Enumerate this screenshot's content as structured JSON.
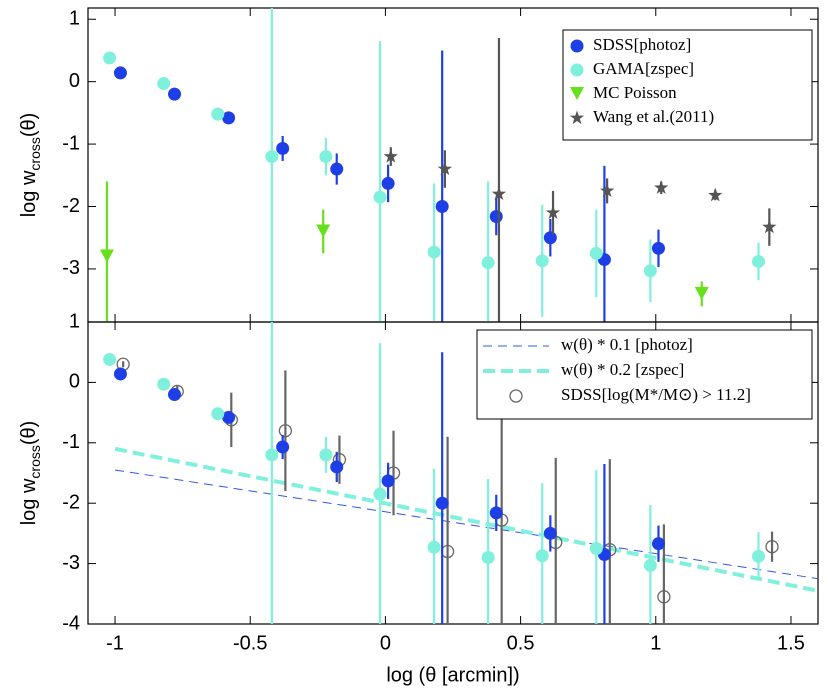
{
  "chart_data": [
    {
      "type": "scatter",
      "ylabel": [
        "log w",
        "cross",
        "(θ)"
      ],
      "xlim": [
        -1.1,
        1.6
      ],
      "xticks": [
        -1,
        -0.5,
        0,
        0.5,
        1,
        1.5
      ],
      "ylim": [
        -3.85,
        1.18
      ],
      "yticks": [
        -3,
        -2,
        -1,
        0,
        1
      ],
      "legend": "upper right",
      "series": [
        {
          "name": "SDSS[photoz]",
          "color": "#1f3fe6",
          "marker": "circle",
          "x": [
            -0.98,
            -0.78,
            -0.58,
            -0.38,
            -0.18,
            0.01,
            0.21,
            0.41,
            0.61,
            0.81,
            1.01
          ],
          "values": [
            0.14,
            -0.2,
            -0.58,
            -1.07,
            -1.4,
            -1.63,
            -2.0,
            -2.16,
            -2.5,
            -2.85,
            -2.67
          ],
          "yerr": [
            0.05,
            0.05,
            0.1,
            0.2,
            0.25,
            0.3,
            2.5,
            0.3,
            0.3,
            1.5,
            0.3
          ]
        },
        {
          "name": "GAMA[zspec]",
          "color": "#7ff0dc",
          "marker": "circle",
          "x": [
            -1.02,
            -0.82,
            -0.62,
            -0.42,
            -0.22,
            -0.02,
            0.18,
            0.38,
            0.58,
            0.78,
            0.98,
            1.38
          ],
          "values": [
            0.38,
            -0.03,
            -0.52,
            -1.2,
            -1.2,
            -1.85,
            -2.73,
            -2.9,
            -2.87,
            -2.75,
            -3.03,
            -2.88
          ],
          "yerr": [
            0.05,
            0.05,
            0.1,
            3,
            0.3,
            2.5,
            1.1,
            1.3,
            0.9,
            0.7,
            0.5,
            0.3
          ]
        },
        {
          "name": "MC Poisson",
          "color": "#66e01a",
          "marker": "triangle",
          "x": [
            -1.03,
            -0.23,
            1.17
          ],
          "values": [
            -2.8,
            -2.4,
            -3.4
          ],
          "yerr": [
            1.2,
            0.35,
            0.2
          ]
        },
        {
          "name": "Wang et al.(2011)",
          "color": "#555555",
          "marker": "star",
          "x": [
            0.02,
            0.22,
            0.42,
            0.62,
            0.82,
            1.02,
            1.22,
            1.42
          ],
          "values": [
            -1.2,
            -1.4,
            -1.8,
            -2.1,
            -1.75,
            -1.7,
            -1.82,
            -2.33
          ],
          "yerr": [
            0.15,
            0.3,
            2.5,
            0.35,
            0.2,
            0.1,
            0.08,
            0.3
          ]
        }
      ]
    },
    {
      "type": "scatter",
      "ylabel": [
        "log w",
        "cross",
        "(θ)"
      ],
      "xlabel": "log (θ [arcmin])",
      "xlim": [
        -1.1,
        1.6
      ],
      "xticks": [
        -1,
        -0.5,
        0,
        0.5,
        1,
        1.5
      ],
      "ylim": [
        -4,
        1
      ],
      "yticks": [
        -4,
        -3,
        -2,
        -1,
        0,
        1
      ],
      "legend": "upper right",
      "series": [
        {
          "name": "w(θ) * 0.1 [photoz]",
          "color": "#3355ee",
          "marker": "thin-dash",
          "x": [
            -1.0,
            1.6
          ],
          "values": [
            -1.45,
            -3.25
          ]
        },
        {
          "name": "w(θ) * 0.2 [zspec]",
          "color": "#7ff0dc",
          "marker": "thick-dash",
          "x": [
            -1.0,
            1.6
          ],
          "values": [
            -1.1,
            -3.45
          ]
        },
        {
          "name": "SDSS[log(M*/M⊙) > 11.2]",
          "color": "#666666",
          "marker": "circle-open",
          "x": [
            -0.97,
            -0.77,
            -0.57,
            -0.37,
            -0.17,
            0.03,
            0.23,
            0.43,
            0.63,
            0.83,
            1.03,
            1.23,
            1.43
          ],
          "values": [
            0.3,
            -0.15,
            -0.62,
            -0.8,
            -1.28,
            -1.5,
            -2.8,
            -2.28,
            -2.65,
            -2.77,
            -3.55,
            null,
            -2.72
          ],
          "yerr": [
            0.05,
            0.1,
            0.45,
            1.0,
            0.4,
            0.7,
            1.9,
            1.8,
            1.4,
            1.5,
            1.2,
            null,
            0.25
          ]
        },
        {
          "name": "SDSS[photoz]",
          "color": "#1f3fe6",
          "marker": "circle",
          "nolegend": true,
          "x": [
            -0.98,
            -0.78,
            -0.58,
            -0.38,
            -0.18,
            0.01,
            0.21,
            0.41,
            0.61,
            0.81,
            1.01
          ],
          "values": [
            0.14,
            -0.2,
            -0.58,
            -1.07,
            -1.4,
            -1.63,
            -2.0,
            -2.16,
            -2.5,
            -2.85,
            -2.67
          ],
          "yerr": [
            0.05,
            0.05,
            0.1,
            0.2,
            0.25,
            0.3,
            2.5,
            0.3,
            0.3,
            1.5,
            0.3
          ]
        },
        {
          "name": "GAMA[zspec]",
          "color": "#7ff0dc",
          "marker": "circle",
          "nolegend": true,
          "x": [
            -1.02,
            -0.82,
            -0.62,
            -0.42,
            -0.22,
            -0.02,
            0.18,
            0.38,
            0.58,
            0.78,
            0.98,
            1.38
          ],
          "values": [
            0.38,
            -0.03,
            -0.52,
            -1.2,
            -1.2,
            -1.85,
            -2.73,
            -2.9,
            -2.87,
            -2.75,
            -3.03,
            -2.88
          ],
          "yerr": [
            0.05,
            0.05,
            0.1,
            3,
            0.3,
            2.5,
            1.3,
            1.3,
            1.2,
            1.3,
            1.0,
            0.4
          ]
        }
      ]
    }
  ]
}
